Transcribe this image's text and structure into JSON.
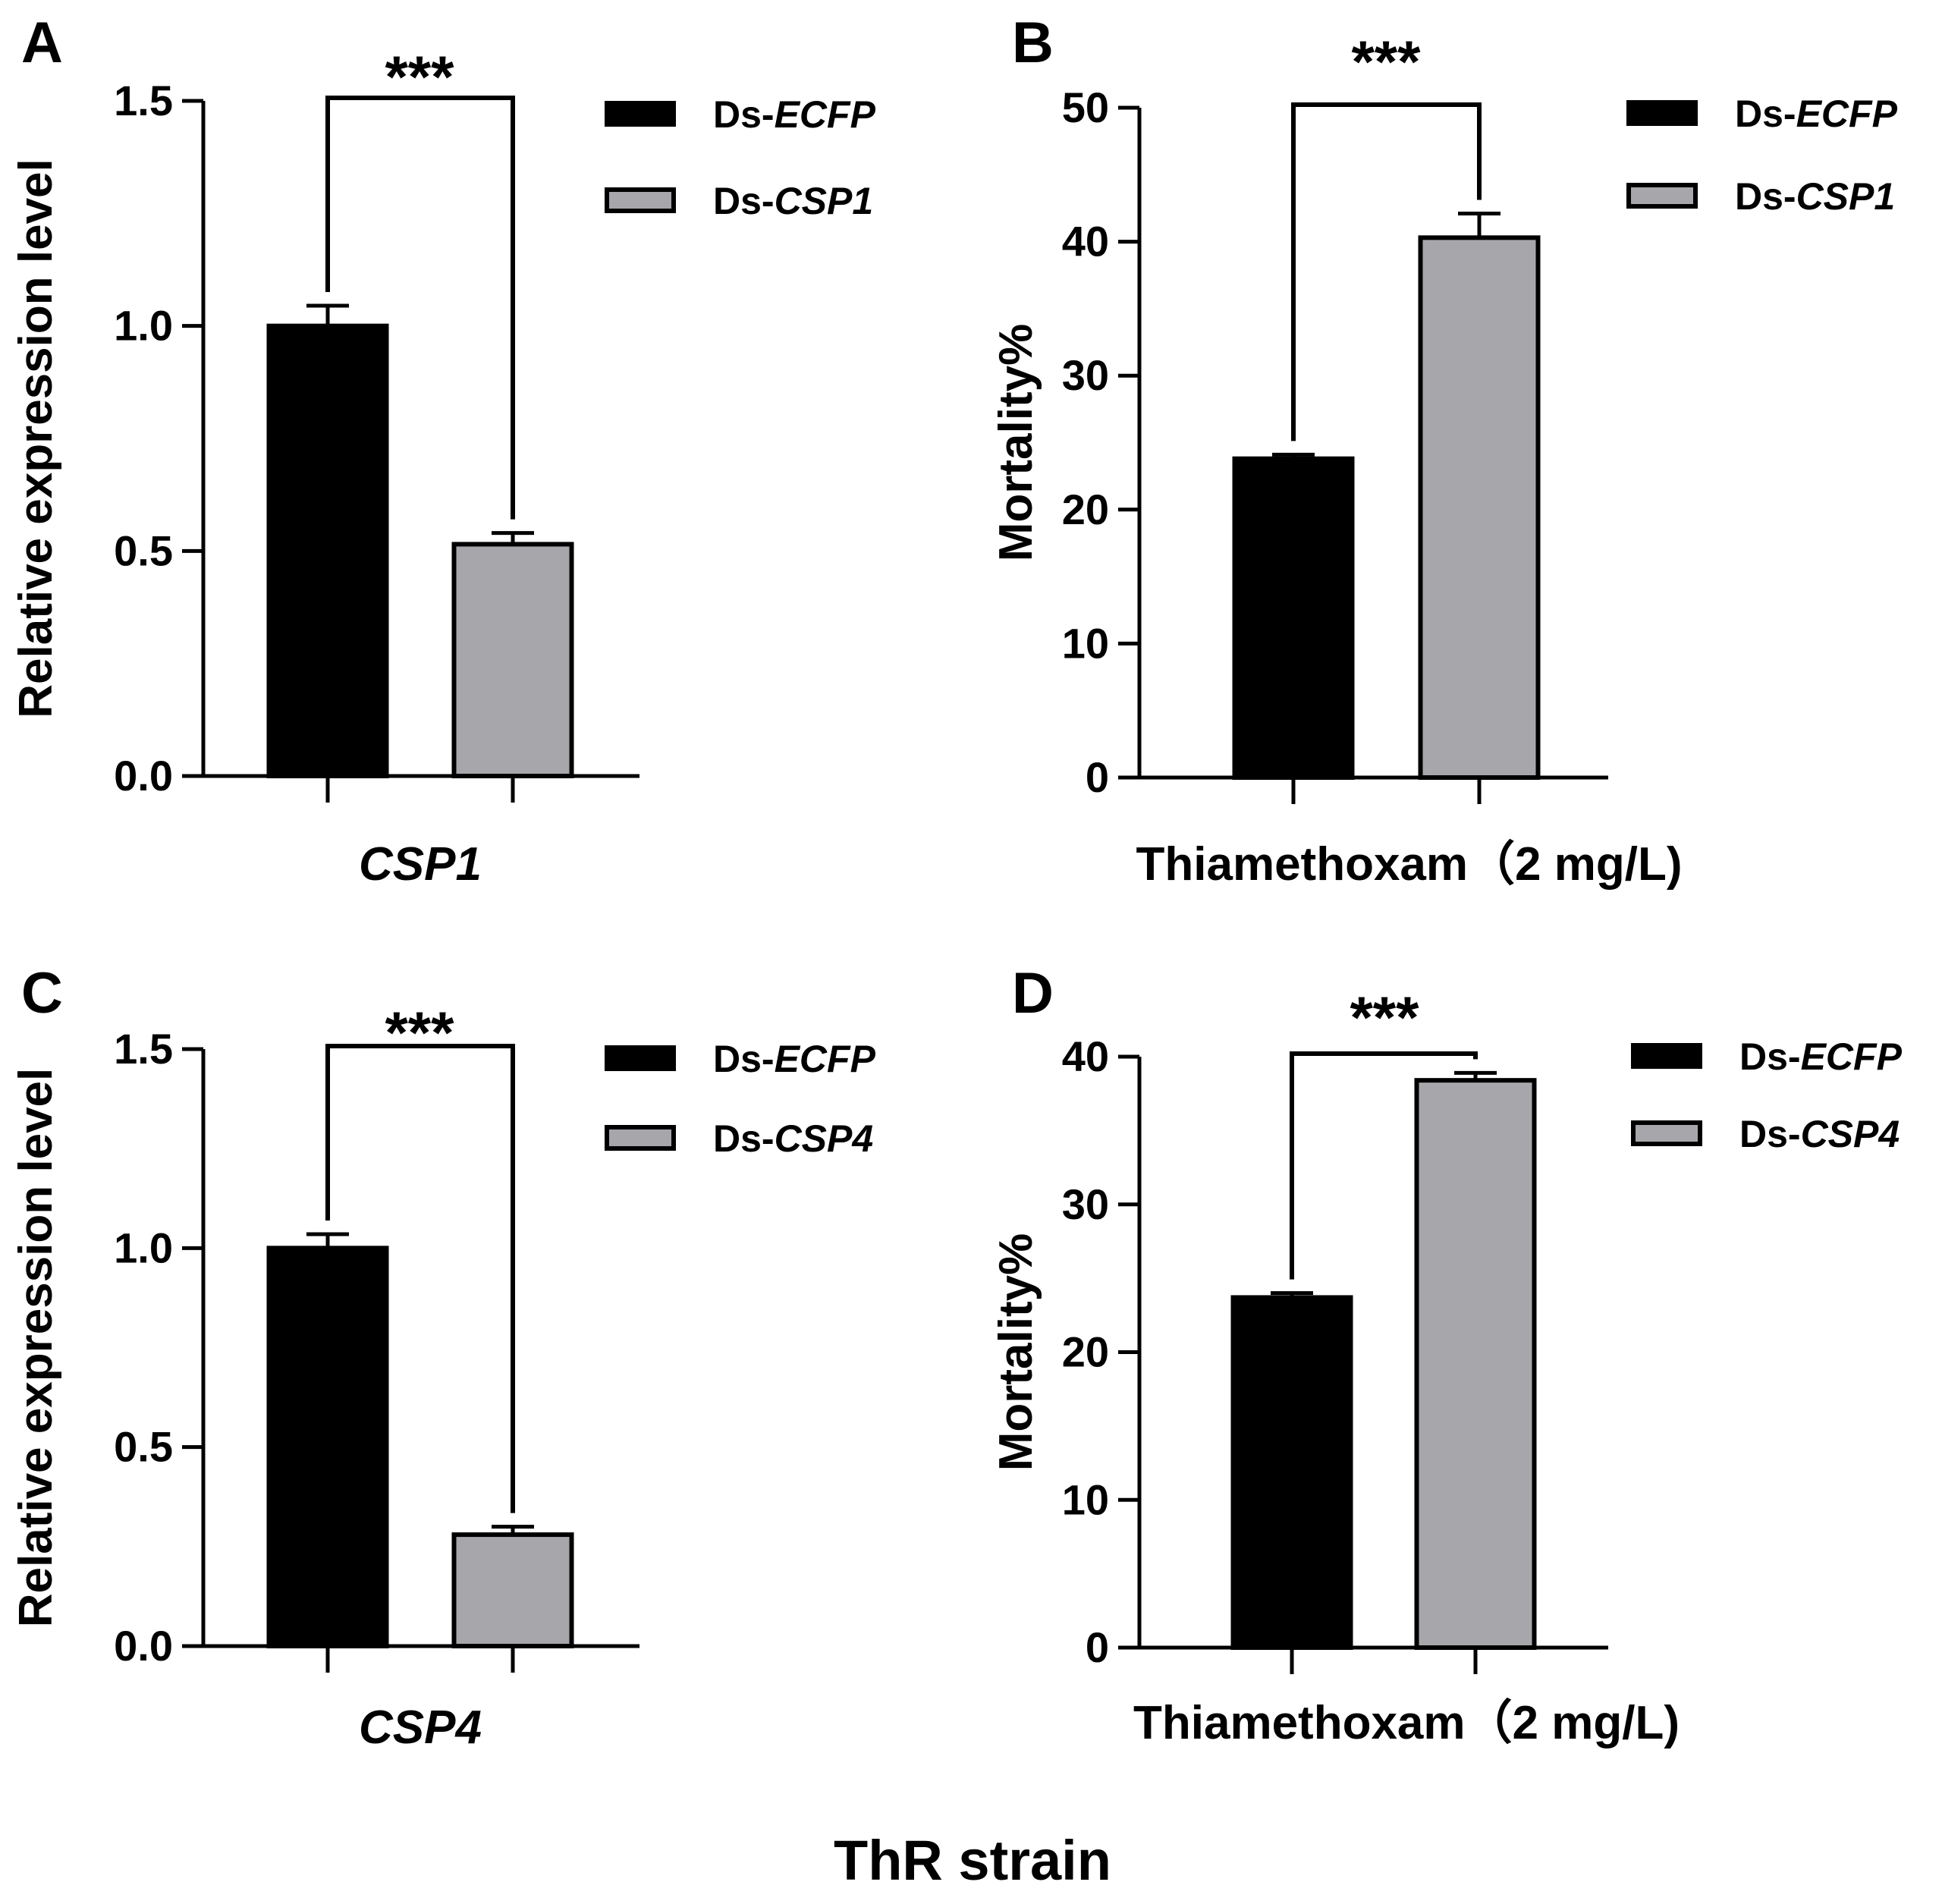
{
  "footer_title": "ThR strain",
  "chart_data": [
    {
      "panel": "A",
      "type": "bar",
      "ylabel": "Relative expression level",
      "xlabel": "CSP1",
      "xlabel_italic": true,
      "ylim": [
        0,
        1.5
      ],
      "yticks": [
        0.0,
        0.5,
        1.0,
        1.5
      ],
      "ytick_labels": [
        "0.0",
        "0.5",
        "1.0",
        "1.5"
      ],
      "series": [
        {
          "name": "Ds-ECFP",
          "prefix": "Ds-",
          "gene": "ECFP",
          "value": 1.0,
          "error": 0.045,
          "color": "#000000"
        },
        {
          "name": "Ds-CSP1",
          "prefix": "Ds-",
          "gene": "CSP1",
          "value": 0.515,
          "error": 0.025,
          "color": "#a7a6ab"
        }
      ],
      "significance": "***"
    },
    {
      "panel": "B",
      "type": "bar",
      "ylabel": "Mortality%",
      "xlabel": "Thiamethoxam（2 mg/L)",
      "xlabel_italic": false,
      "ylim": [
        0,
        50
      ],
      "yticks": [
        0,
        10,
        20,
        30,
        40,
        50
      ],
      "ytick_labels": [
        "0",
        "10",
        "20",
        "30",
        "40",
        "50"
      ],
      "series": [
        {
          "name": "Ds-ECFP",
          "prefix": "Ds-",
          "gene": "ECFP",
          "value": 23.8,
          "error": 0.3,
          "color": "#000000"
        },
        {
          "name": "Ds-CSP1",
          "prefix": "Ds-",
          "gene": "CSP1",
          "value": 40.3,
          "error": 1.8,
          "color": "#a7a6ab"
        }
      ],
      "significance": "***"
    },
    {
      "panel": "C",
      "type": "bar",
      "ylabel": "Relative expression level",
      "xlabel": "CSP4",
      "xlabel_italic": true,
      "ylim": [
        0,
        1.5
      ],
      "yticks": [
        0.0,
        0.5,
        1.0,
        1.5
      ],
      "ytick_labels": [
        "0.0",
        "0.5",
        "1.0",
        "1.5"
      ],
      "series": [
        {
          "name": "Ds-ECFP",
          "prefix": "Ds-",
          "gene": "ECFP",
          "value": 1.0,
          "error": 0.035,
          "color": "#000000"
        },
        {
          "name": "Ds-CSP4",
          "prefix": "Ds-",
          "gene": "CSP4",
          "value": 0.28,
          "error": 0.02,
          "color": "#a7a6ab"
        }
      ],
      "significance": "***"
    },
    {
      "panel": "D",
      "type": "bar",
      "ylabel": "Mortality%",
      "xlabel": "Thiamethoxam（2 mg/L)",
      "xlabel_italic": false,
      "ylim": [
        0,
        40
      ],
      "yticks": [
        0,
        10,
        20,
        30,
        40
      ],
      "ytick_labels": [
        "0",
        "10",
        "20",
        "30",
        "40"
      ],
      "series": [
        {
          "name": "Ds-ECFP",
          "prefix": "Ds-",
          "gene": "ECFP",
          "value": 23.7,
          "error": 0.3,
          "color": "#000000"
        },
        {
          "name": "Ds-CSP4",
          "prefix": "Ds-",
          "gene": "CSP4",
          "value": 38.4,
          "error": 0.5,
          "color": "#a7a6ab"
        }
      ],
      "significance": "***"
    }
  ]
}
